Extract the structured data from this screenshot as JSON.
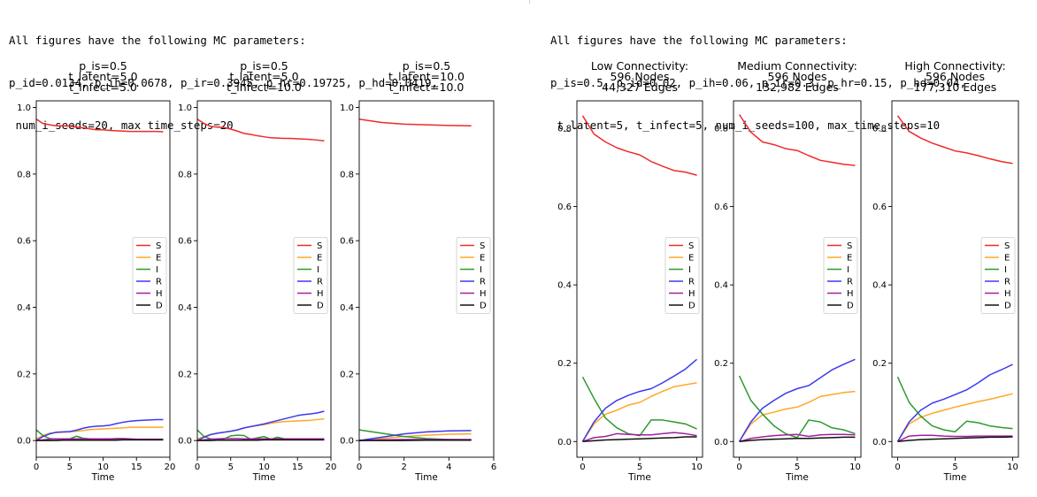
{
  "left_panel": {
    "params_lines": [
      "All figures have the following MC parameters:",
      "p_id=0.0134, p_ih=0.0678, p_ir=0.3945, p_hr=0.19725, p_hd=0.0419,",
      " num_i_seeds=20, max_time_steps=20"
    ]
  },
  "right_panel": {
    "params_lines": [
      "All figures have the following MC parameters:",
      "p_is=0.5, p_id=0.02, p_ih=0.06, p_ir=0.3, p_hr=0.15, p_hd=0.04,",
      " t_latent=5, t_infect=5, num_i_seeds=100, max_time_steps=10"
    ]
  },
  "series_colors": {
    "S": "#ee2a2a",
    "E": "#ffa726",
    "I": "#2e9a2e",
    "R": "#3a3af0",
    "H": "#a020a0",
    "D": "#111111"
  },
  "chart_data": [
    {
      "type": "line",
      "title": [
        "p_is=0.5",
        "t_latent=5.0",
        "t_infect=5.0"
      ],
      "xlabel": "Time",
      "ylabel": "",
      "xlim": [
        0,
        20
      ],
      "ylim": [
        -0.05,
        1.02
      ],
      "xticks": [
        0,
        5,
        10,
        15,
        20
      ],
      "yticks": [
        0.0,
        0.2,
        0.4,
        0.6,
        0.8,
        1.0
      ],
      "legend": "center-right",
      "grid": false,
      "x": [
        0,
        1,
        2,
        3,
        4,
        5,
        6,
        7,
        8,
        9,
        10,
        11,
        12,
        13,
        14,
        15,
        16,
        17,
        18,
        19
      ],
      "series": [
        {
          "name": "S",
          "values": [
            0.965,
            0.952,
            0.948,
            0.945,
            0.945,
            0.944,
            0.941,
            0.939,
            0.936,
            0.933,
            0.933,
            0.931,
            0.93,
            0.929,
            0.928,
            0.928,
            0.928,
            0.928,
            0.928,
            0.927
          ]
        },
        {
          "name": "E",
          "values": [
            0.005,
            0.015,
            0.022,
            0.024,
            0.025,
            0.026,
            0.028,
            0.03,
            0.033,
            0.034,
            0.035,
            0.036,
            0.037,
            0.038,
            0.04,
            0.04,
            0.04,
            0.04,
            0.04,
            0.04
          ]
        },
        {
          "name": "I",
          "values": [
            0.032,
            0.015,
            0.006,
            0.004,
            0.004,
            0.005,
            0.013,
            0.007,
            0.005,
            0.004,
            0.004,
            0.005,
            0.004,
            0.004,
            0.003,
            0.003,
            0.003,
            0.003,
            0.003,
            0.003
          ]
        },
        {
          "name": "R",
          "values": [
            0.0,
            0.012,
            0.02,
            0.025,
            0.026,
            0.027,
            0.031,
            0.037,
            0.041,
            0.043,
            0.044,
            0.046,
            0.051,
            0.055,
            0.058,
            0.06,
            0.061,
            0.062,
            0.063,
            0.063
          ]
        },
        {
          "name": "H",
          "values": [
            0.0,
            0.002,
            0.004,
            0.005,
            0.005,
            0.005,
            0.005,
            0.005,
            0.005,
            0.005,
            0.005,
            0.005,
            0.006,
            0.006,
            0.005,
            0.004,
            0.004,
            0.004,
            0.004,
            0.004
          ]
        },
        {
          "name": "D",
          "values": [
            0.0,
            0.0,
            0.0,
            0.0,
            0.001,
            0.001,
            0.001,
            0.001,
            0.001,
            0.001,
            0.001,
            0.001,
            0.001,
            0.002,
            0.002,
            0.002,
            0.002,
            0.002,
            0.002,
            0.002
          ]
        }
      ]
    },
    {
      "type": "line",
      "title": [
        "p_is=0.5",
        "t_latent=5.0",
        "t_infect=10.0"
      ],
      "xlabel": "Time",
      "ylabel": "",
      "xlim": [
        0,
        20
      ],
      "ylim": [
        -0.05,
        1.02
      ],
      "xticks": [
        0,
        5,
        10,
        15,
        20
      ],
      "yticks": [
        0.0,
        0.2,
        0.4,
        0.6,
        0.8,
        1.0
      ],
      "legend": "center-right",
      "grid": false,
      "x": [
        0,
        1,
        2,
        3,
        4,
        5,
        6,
        7,
        8,
        9,
        10,
        11,
        12,
        13,
        14,
        15,
        16,
        17,
        18,
        19
      ],
      "series": [
        {
          "name": "S",
          "values": [
            0.965,
            0.952,
            0.943,
            0.941,
            0.94,
            0.935,
            0.929,
            0.922,
            0.919,
            0.915,
            0.912,
            0.909,
            0.908,
            0.907,
            0.907,
            0.906,
            0.905,
            0.904,
            0.902,
            0.9
          ]
        },
        {
          "name": "E",
          "values": [
            0.005,
            0.012,
            0.018,
            0.022,
            0.025,
            0.028,
            0.032,
            0.038,
            0.042,
            0.045,
            0.048,
            0.052,
            0.055,
            0.057,
            0.058,
            0.059,
            0.06,
            0.061,
            0.063,
            0.065
          ]
        },
        {
          "name": "I",
          "values": [
            0.032,
            0.012,
            0.005,
            0.003,
            0.005,
            0.014,
            0.016,
            0.015,
            0.004,
            0.008,
            0.012,
            0.004,
            0.01,
            0.005,
            0.003,
            0.005,
            0.004,
            0.004,
            0.003,
            0.003
          ]
        },
        {
          "name": "R",
          "values": [
            0.0,
            0.01,
            0.018,
            0.022,
            0.025,
            0.028,
            0.032,
            0.038,
            0.042,
            0.046,
            0.05,
            0.055,
            0.06,
            0.065,
            0.07,
            0.075,
            0.078,
            0.08,
            0.083,
            0.088
          ]
        },
        {
          "name": "H",
          "values": [
            0.0,
            0.002,
            0.004,
            0.005,
            0.006,
            0.006,
            0.006,
            0.005,
            0.005,
            0.005,
            0.005,
            0.005,
            0.005,
            0.005,
            0.005,
            0.005,
            0.005,
            0.005,
            0.005,
            0.005
          ]
        },
        {
          "name": "D",
          "values": [
            0.0,
            0.0,
            0.0,
            0.001,
            0.001,
            0.001,
            0.001,
            0.001,
            0.001,
            0.001,
            0.002,
            0.002,
            0.002,
            0.002,
            0.002,
            0.002,
            0.002,
            0.002,
            0.002,
            0.002
          ]
        }
      ]
    },
    {
      "type": "line",
      "title": [
        "p_is=0.5",
        "t_latent=10.0",
        "t_infect=10.0"
      ],
      "xlabel": "Time",
      "ylabel": "",
      "xlim": [
        0,
        6
      ],
      "ylim": [
        -0.05,
        1.02
      ],
      "xticks": [
        0,
        2,
        4,
        6
      ],
      "yticks": [
        0.0,
        0.2,
        0.4,
        0.6,
        0.8,
        1.0
      ],
      "legend": "center-right",
      "grid": false,
      "x": [
        0,
        1,
        2,
        3,
        4,
        5
      ],
      "series": [
        {
          "name": "S",
          "values": [
            0.965,
            0.955,
            0.95,
            0.948,
            0.946,
            0.945
          ]
        },
        {
          "name": "E",
          "values": [
            0.0,
            0.006,
            0.012,
            0.016,
            0.019,
            0.02
          ]
        },
        {
          "name": "I",
          "values": [
            0.032,
            0.022,
            0.012,
            0.006,
            0.003,
            0.002
          ]
        },
        {
          "name": "R",
          "values": [
            0.0,
            0.01,
            0.02,
            0.026,
            0.029,
            0.03
          ]
        },
        {
          "name": "H",
          "values": [
            0.0,
            0.002,
            0.003,
            0.003,
            0.003,
            0.003
          ]
        },
        {
          "name": "D",
          "values": [
            0.0,
            0.0,
            0.0,
            0.001,
            0.001,
            0.001
          ]
        }
      ]
    },
    {
      "type": "line",
      "title": [
        "Low Connectivity:",
        "596 Nodes",
        "44,327 Edges"
      ],
      "xlabel": "Time",
      "ylabel": "",
      "xlim": [
        -0.5,
        10.5
      ],
      "ylim": [
        -0.04,
        0.87
      ],
      "xticks": [
        0,
        5,
        10
      ],
      "yticks": [
        0.0,
        0.2,
        0.4,
        0.6,
        0.8
      ],
      "legend": "center-right",
      "grid": false,
      "x": [
        0,
        1,
        2,
        3,
        4,
        5,
        6,
        7,
        8,
        9,
        10
      ],
      "series": [
        {
          "name": "S",
          "values": [
            0.832,
            0.785,
            0.765,
            0.75,
            0.74,
            0.732,
            0.715,
            0.703,
            0.692,
            0.688,
            0.68
          ]
        },
        {
          "name": "E",
          "values": [
            0.0,
            0.045,
            0.07,
            0.08,
            0.093,
            0.1,
            0.115,
            0.128,
            0.14,
            0.145,
            0.15
          ]
        },
        {
          "name": "I",
          "values": [
            0.165,
            0.11,
            0.06,
            0.035,
            0.02,
            0.015,
            0.055,
            0.055,
            0.05,
            0.045,
            0.032
          ]
        },
        {
          "name": "R",
          "values": [
            0.0,
            0.05,
            0.085,
            0.105,
            0.118,
            0.128,
            0.135,
            0.15,
            0.167,
            0.185,
            0.21
          ]
        },
        {
          "name": "H",
          "values": [
            0.0,
            0.01,
            0.013,
            0.02,
            0.018,
            0.017,
            0.017,
            0.02,
            0.023,
            0.02,
            0.015
          ]
        },
        {
          "name": "D",
          "values": [
            0.0,
            0.002,
            0.004,
            0.005,
            0.006,
            0.007,
            0.008,
            0.009,
            0.01,
            0.012,
            0.012
          ]
        }
      ]
    },
    {
      "type": "line",
      "title": [
        "Medium Connectivity:",
        "596 Nodes",
        "132,982 Edges"
      ],
      "xlabel": "Time",
      "ylabel": "",
      "xlim": [
        -0.5,
        10.5
      ],
      "ylim": [
        -0.04,
        0.87
      ],
      "xticks": [
        0,
        5,
        10
      ],
      "yticks": [
        0.0,
        0.2,
        0.4,
        0.6,
        0.8
      ],
      "legend": "center-right",
      "grid": false,
      "x": [
        0,
        1,
        2,
        3,
        4,
        5,
        6,
        7,
        8,
        9,
        10
      ],
      "series": [
        {
          "name": "S",
          "values": [
            0.835,
            0.79,
            0.765,
            0.758,
            0.748,
            0.743,
            0.73,
            0.718,
            0.713,
            0.708,
            0.705
          ]
        },
        {
          "name": "E",
          "values": [
            0.0,
            0.045,
            0.068,
            0.075,
            0.083,
            0.088,
            0.1,
            0.115,
            0.12,
            0.125,
            0.128
          ]
        },
        {
          "name": "I",
          "values": [
            0.168,
            0.105,
            0.07,
            0.04,
            0.02,
            0.01,
            0.055,
            0.05,
            0.035,
            0.03,
            0.02
          ]
        },
        {
          "name": "R",
          "values": [
            0.0,
            0.05,
            0.085,
            0.105,
            0.123,
            0.135,
            0.143,
            0.163,
            0.183,
            0.197,
            0.21
          ]
        },
        {
          "name": "H",
          "values": [
            0.0,
            0.008,
            0.012,
            0.015,
            0.017,
            0.018,
            0.013,
            0.017,
            0.018,
            0.018,
            0.017
          ]
        },
        {
          "name": "D",
          "values": [
            0.0,
            0.003,
            0.005,
            0.006,
            0.007,
            0.008,
            0.008,
            0.009,
            0.01,
            0.011,
            0.011
          ]
        }
      ]
    },
    {
      "type": "line",
      "title": [
        "High Connectivity:",
        "596 Nodes",
        "177,310 Edges"
      ],
      "xlabel": "Time",
      "ylabel": "",
      "xlim": [
        -0.5,
        10.5
      ],
      "ylim": [
        -0.04,
        0.87
      ],
      "xticks": [
        0,
        5,
        10
      ],
      "yticks": [
        0.0,
        0.2,
        0.4,
        0.6,
        0.8
      ],
      "legend": "center-right",
      "grid": false,
      "x": [
        0,
        1,
        2,
        3,
        4,
        5,
        6,
        7,
        8,
        9,
        10
      ],
      "series": [
        {
          "name": "S",
          "values": [
            0.832,
            0.792,
            0.775,
            0.762,
            0.752,
            0.742,
            0.737,
            0.73,
            0.722,
            0.715,
            0.71
          ]
        },
        {
          "name": "E",
          "values": [
            0.0,
            0.045,
            0.062,
            0.072,
            0.08,
            0.088,
            0.095,
            0.102,
            0.108,
            0.115,
            0.122
          ]
        },
        {
          "name": "I",
          "values": [
            0.165,
            0.1,
            0.065,
            0.04,
            0.03,
            0.025,
            0.052,
            0.048,
            0.04,
            0.036,
            0.033
          ]
        },
        {
          "name": "R",
          "values": [
            0.0,
            0.05,
            0.08,
            0.098,
            0.108,
            0.12,
            0.132,
            0.15,
            0.17,
            0.183,
            0.197
          ]
        },
        {
          "name": "H",
          "values": [
            0.0,
            0.014,
            0.016,
            0.016,
            0.014,
            0.013,
            0.013,
            0.014,
            0.014,
            0.014,
            0.014
          ]
        },
        {
          "name": "D",
          "values": [
            0.0,
            0.003,
            0.005,
            0.006,
            0.007,
            0.008,
            0.009,
            0.01,
            0.011,
            0.011,
            0.012
          ]
        }
      ]
    }
  ]
}
